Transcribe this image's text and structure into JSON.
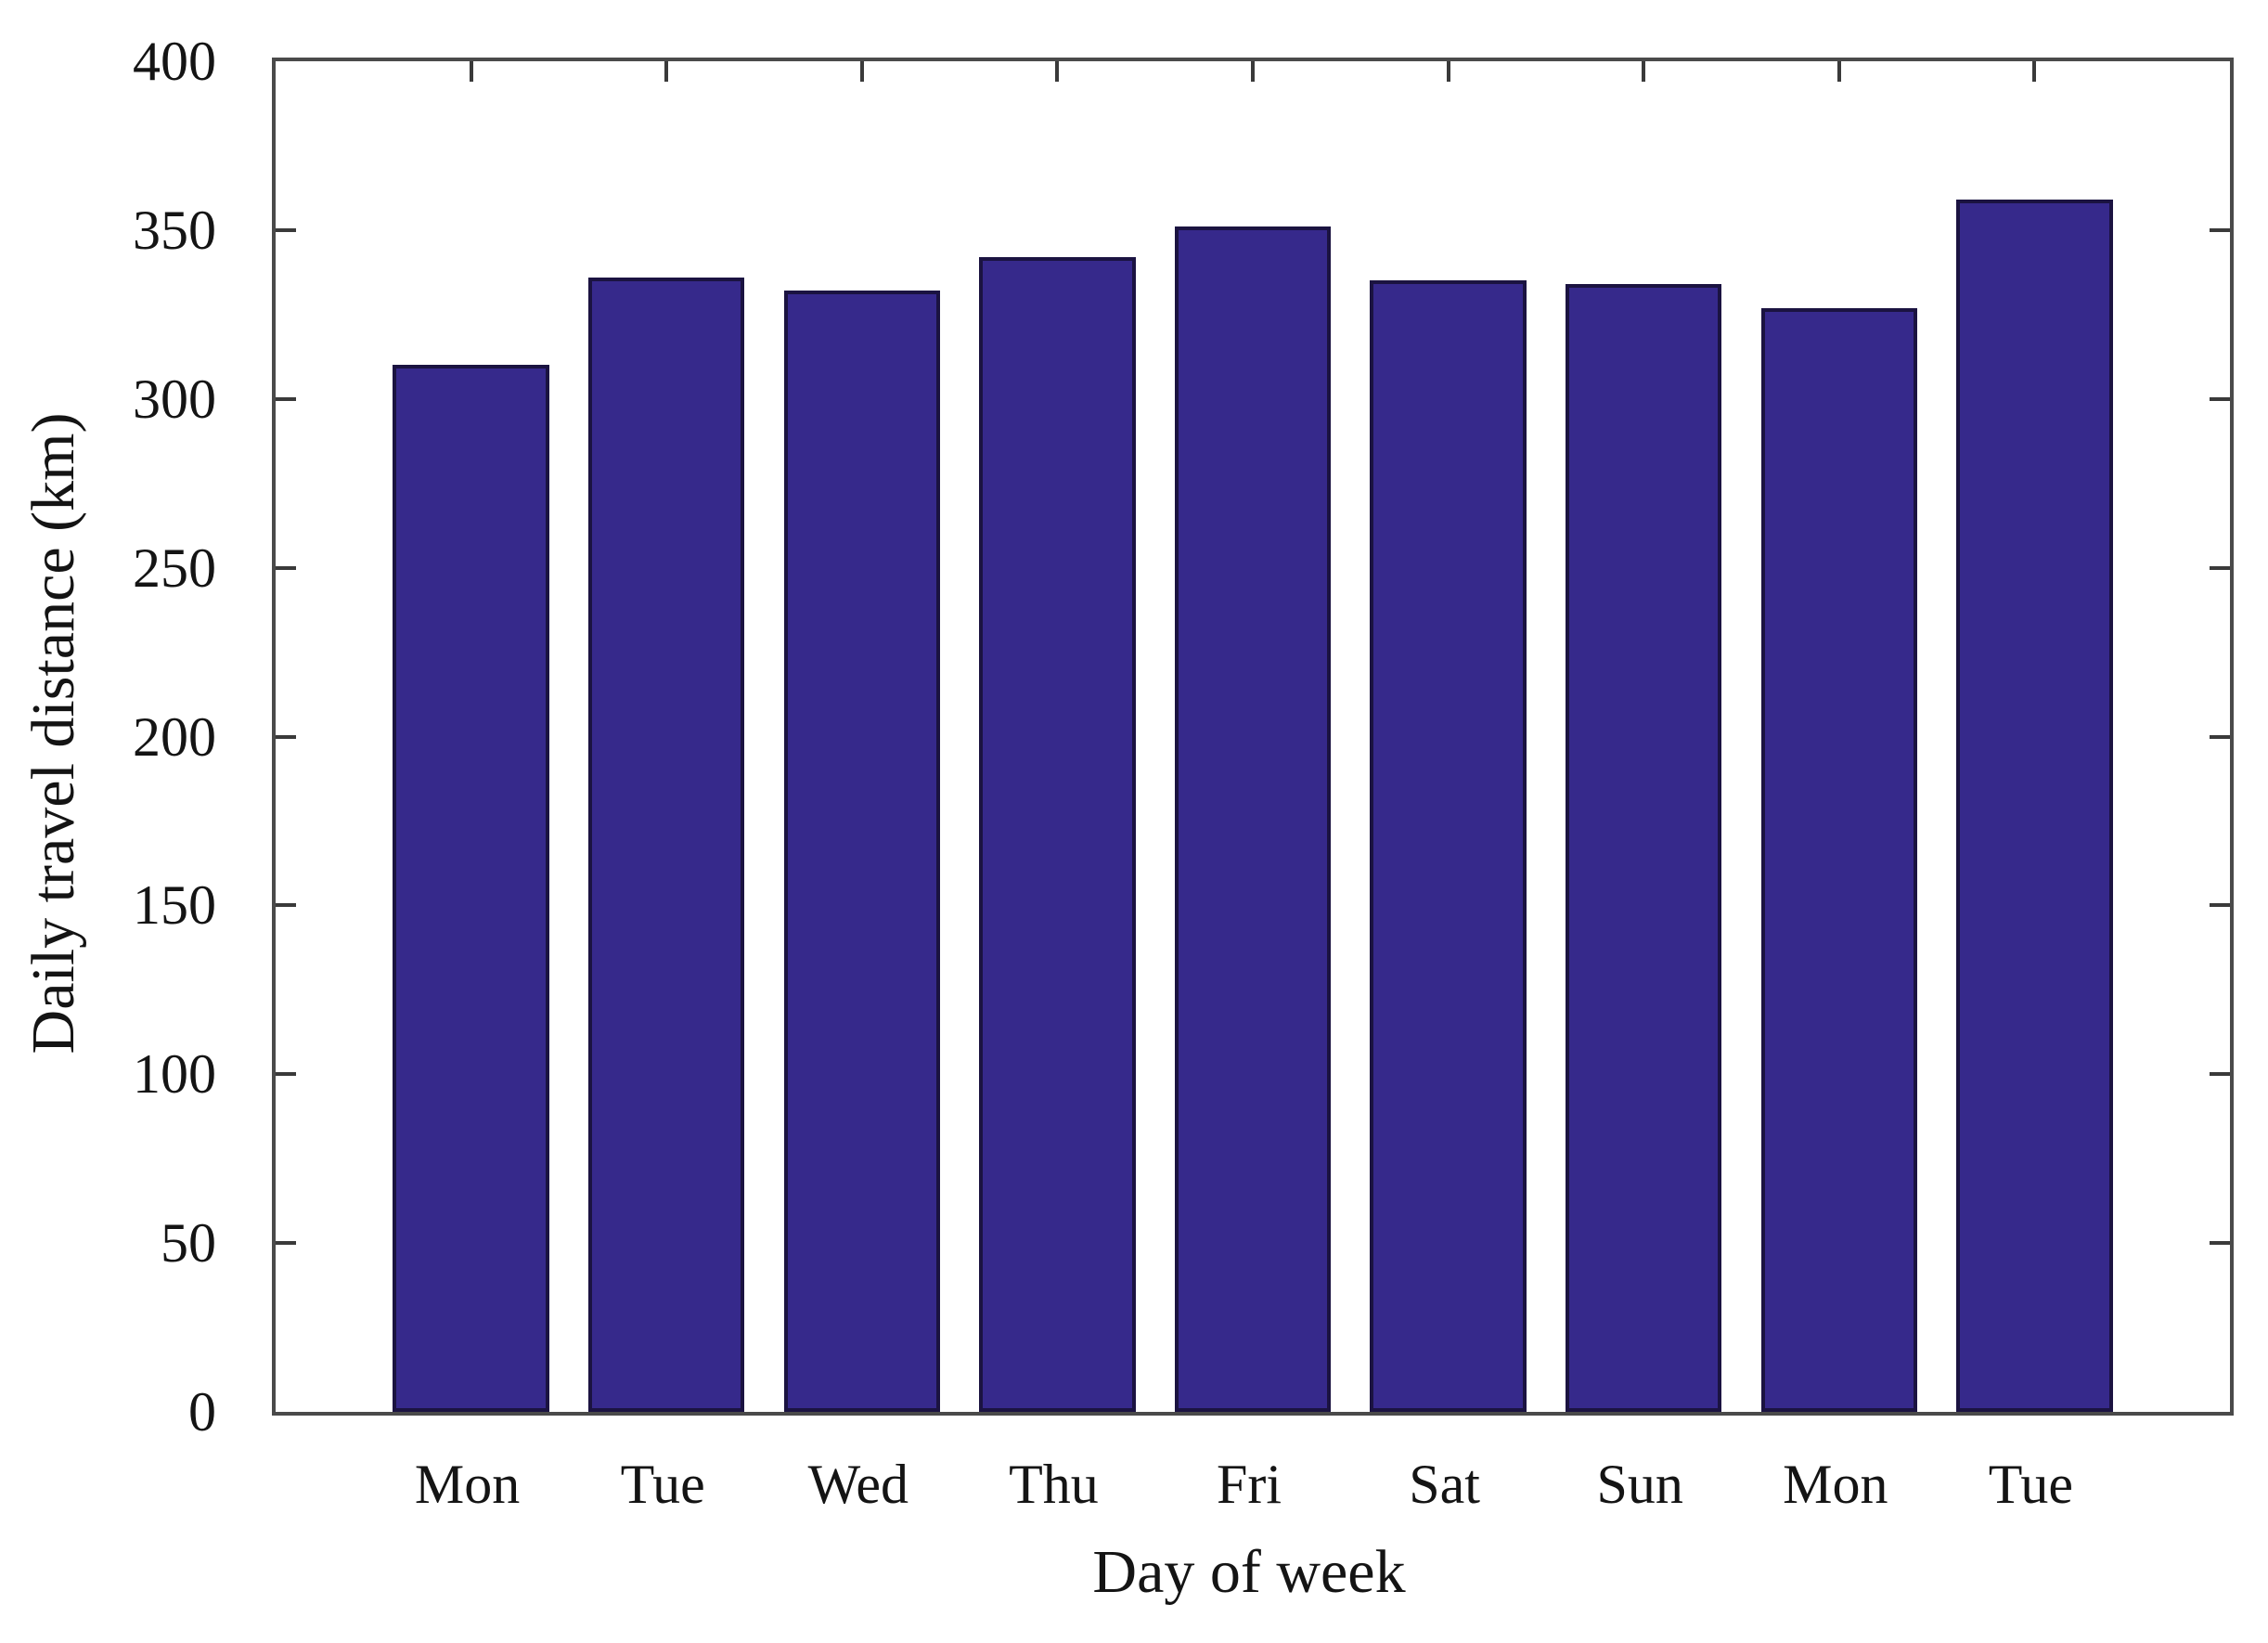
{
  "figure": {
    "background_color": "#ffffff",
    "text_color": "#141414",
    "axis_box_color": "#4a4a4a",
    "tick_color": "#3a3a3a"
  },
  "chart_data": {
    "type": "bar",
    "title": "",
    "xlabel": "Day of week",
    "ylabel": "Daily travel distance (km)",
    "categories": [
      "Mon",
      "Tue",
      "Wed",
      "Thu",
      "Fri",
      "Sat",
      "Sun",
      "Mon",
      "Tue"
    ],
    "values": [
      310,
      336,
      332,
      342,
      351,
      335,
      334,
      327,
      359
    ],
    "ylim": [
      0,
      400
    ],
    "yticks": [
      0,
      50,
      100,
      150,
      200,
      250,
      300,
      350,
      400
    ],
    "xlim": [
      0,
      10
    ],
    "bar_width_fraction": 0.8,
    "bar_color": "#36298b",
    "bar_edge_color": "#1b1341",
    "grid": false,
    "legend": null,
    "box": true,
    "tick_direction": "in"
  }
}
